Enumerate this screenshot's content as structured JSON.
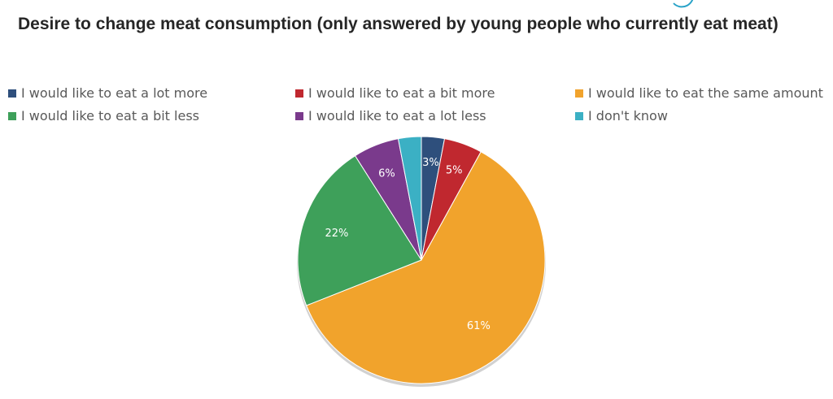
{
  "title": "Desire to change meat consumption (only answered by young people who currently eat meat)",
  "colors": {
    "a_lot_more": "#2e4f7c",
    "a_bit_more": "#c0282f",
    "same": "#f1a32c",
    "a_bit_less": "#3ea05a",
    "a_lot_less": "#7a3a8c",
    "dont_know": "#3bb0c4"
  },
  "chart_data": {
    "type": "pie",
    "title": "Desire to change meat consumption (only answered by young people who currently eat meat)",
    "legend_position": "top",
    "slices": [
      {
        "label": "I would like to eat a lot more",
        "value": 3,
        "display": "3%",
        "color": "#2e4f7c"
      },
      {
        "label": "I would like to eat a bit more",
        "value": 5,
        "display": "5%",
        "color": "#c0282f"
      },
      {
        "label": "I would like to eat the same amount",
        "value": 61,
        "display": "61%",
        "color": "#f1a32c"
      },
      {
        "label": "I would like to eat a bit less",
        "value": 22,
        "display": "22%",
        "color": "#3ea05a"
      },
      {
        "label": "I would like to eat a lot less",
        "value": 6,
        "display": "6%",
        "color": "#7a3a8c"
      },
      {
        "label": "I don't know",
        "value": 3,
        "display": "",
        "color": "#3bb0c4"
      }
    ]
  }
}
